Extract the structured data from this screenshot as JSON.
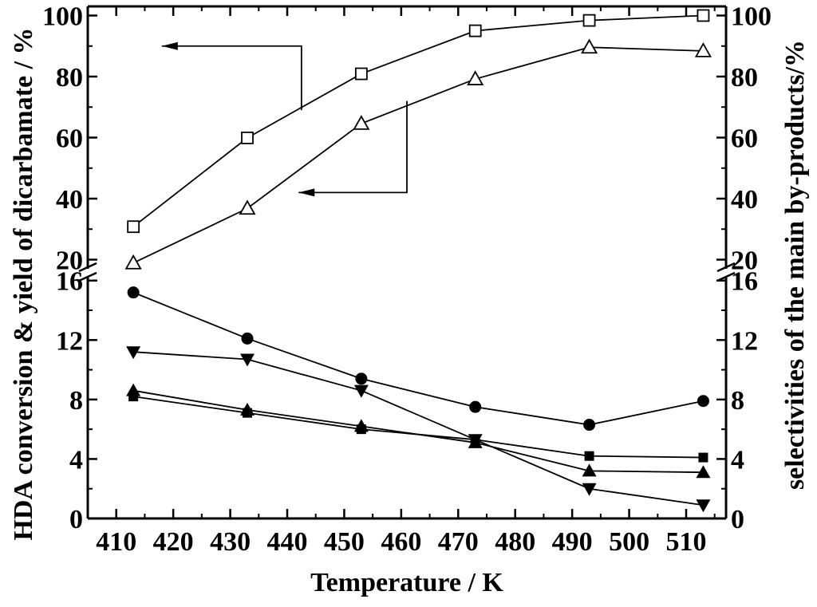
{
  "chart_data": {
    "type": "line",
    "xlabel": "Temperature / K",
    "ylabel_left": "HDA conversion & yield of dicarbamate / %",
    "ylabel_right": "selectivities of the main by-products/%",
    "xlim": [
      405,
      517
    ],
    "x_ticks": [
      410,
      420,
      430,
      440,
      450,
      460,
      470,
      480,
      490,
      500,
      510
    ],
    "x_tick_labels": [
      "410",
      "420",
      "430",
      "440",
      "450",
      "460",
      "470",
      "480",
      "490",
      "500",
      "510"
    ],
    "y_axis_break": true,
    "upper_panel": {
      "ylim": [
        17,
        103
      ],
      "ticks": [
        20,
        40,
        60,
        80,
        100
      ],
      "tick_labels": [
        "20",
        "40",
        "60",
        "80",
        "100"
      ],
      "series": [
        {
          "marker": "open-square",
          "axis": "left",
          "x": [
            413,
            433,
            453,
            473,
            493,
            513
          ],
          "y": [
            30.8,
            59.9,
            80.9,
            95.0,
            98.4,
            100.0
          ]
        },
        {
          "marker": "open-triangle-up",
          "axis": "left",
          "x": [
            413,
            433,
            453,
            473,
            493,
            513
          ],
          "y": [
            18.9,
            36.8,
            64.6,
            79.2,
            89.6,
            88.4
          ]
        }
      ]
    },
    "lower_panel": {
      "ylim": [
        0,
        16.2
      ],
      "ticks": [
        0,
        4,
        8,
        12,
        16
      ],
      "tick_labels": [
        "0",
        "4",
        "8",
        "12",
        "16"
      ],
      "series": [
        {
          "marker": "filled-circle",
          "axis": "right",
          "x": [
            413,
            433,
            453,
            473,
            493,
            513
          ],
          "y": [
            15.2,
            12.1,
            9.4,
            7.5,
            6.3,
            7.9
          ]
        },
        {
          "marker": "filled-triangle-down",
          "axis": "right",
          "x": [
            413,
            433,
            453,
            473,
            493,
            513
          ],
          "y": [
            11.2,
            10.7,
            8.6,
            5.3,
            2.0,
            0.9
          ]
        },
        {
          "marker": "filled-triangle-up",
          "axis": "right",
          "x": [
            413,
            433,
            453,
            473,
            493,
            513
          ],
          "y": [
            8.6,
            7.3,
            6.2,
            5.1,
            3.2,
            3.1
          ]
        },
        {
          "marker": "filled-square",
          "axis": "right",
          "x": [
            413,
            433,
            453,
            473,
            493,
            513
          ],
          "y": [
            8.2,
            7.1,
            6.0,
            5.3,
            4.2,
            4.1
          ]
        }
      ]
    },
    "annotations": [
      {
        "type": "arrow",
        "points_to": "left-axis",
        "from_series_marker": "open-square"
      },
      {
        "type": "arrow",
        "points_to": "left-axis",
        "from_series_marker": "open-triangle-up"
      }
    ],
    "grid": false,
    "legend": "none"
  }
}
